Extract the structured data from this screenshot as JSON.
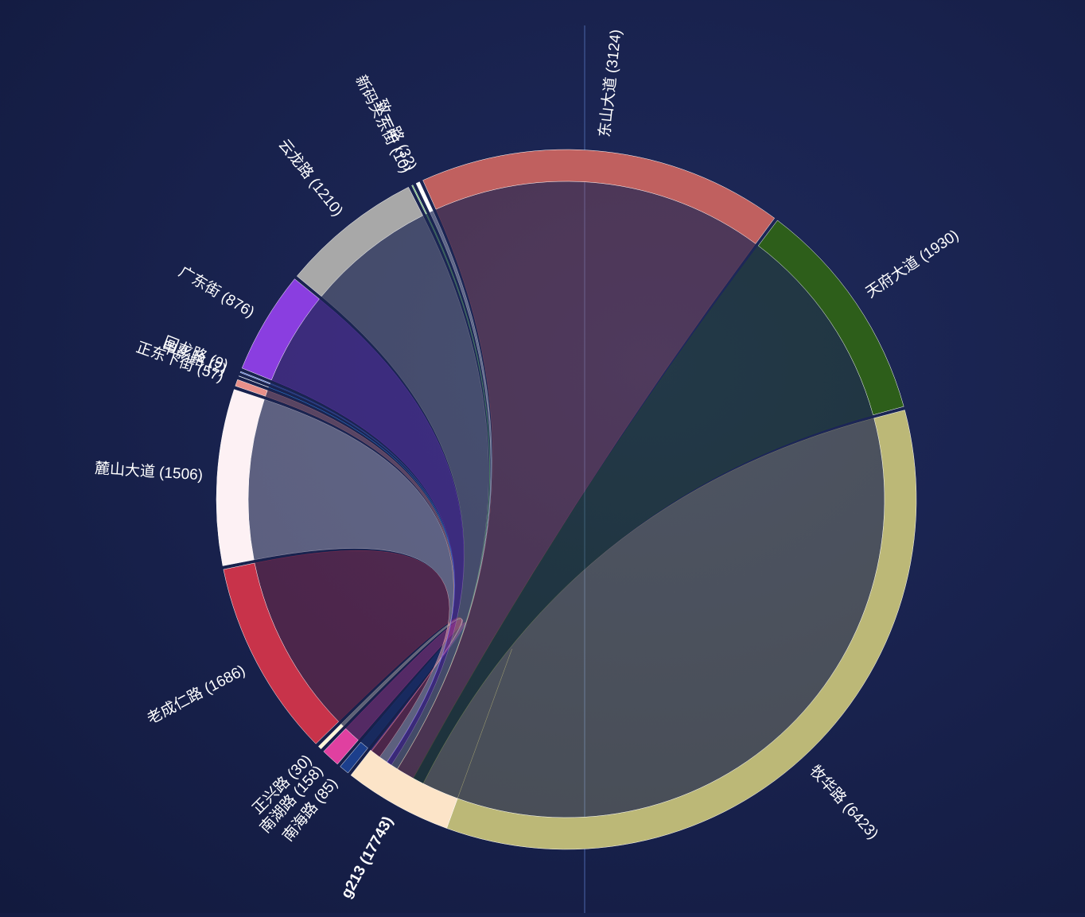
{
  "chart_data": {
    "type": "dependencywheel",
    "hub": {
      "label": "g213 (17743)",
      "value": 17743,
      "color": "#fce4c8"
    },
    "labels": [
      "南海路 (85)",
      "南湖路 (158)",
      "正兴路 (30)",
      "老成仁路 (1686)",
      "麓山大道 (1506)",
      "正东下街 (57)",
      "甲影路 (2)",
      "回龙路 (9)",
      "广东街 (876)",
      "云龙路 (1210)",
      "新码头东街 (10)",
      "致一路 (32)",
      "东山大道 (3124)",
      "天府大道 (1930)",
      "牧华路 (6423)"
    ],
    "values": [
      85,
      158,
      30,
      1686,
      1506,
      57,
      2,
      9,
      876,
      1210,
      10,
      32,
      3124,
      1930,
      6423
    ],
    "colors": [
      "#1c3f8c",
      "#e040a0",
      "#fff5d6",
      "#c8334a",
      "#fdf1f4",
      "#e8908a",
      "#3399ff",
      "#4466cc",
      "#8a3ee0",
      "#a8a8a8",
      "#70c070",
      "#ffffff",
      "#c0605f",
      "#2d5e1a",
      "#bcb877"
    ]
  }
}
